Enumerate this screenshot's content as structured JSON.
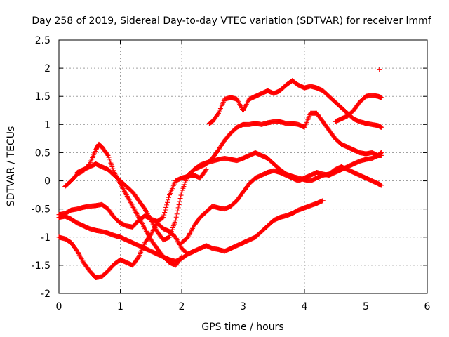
{
  "chart_data": {
    "type": "scatter",
    "title": "Day 258 of 2019, Sidereal Day-to-day VTEC variation (SDTVAR) for receiver lmmf",
    "xlabel": "GPS time / hours",
    "ylabel": "SDTVAR / TECUs",
    "xlim": [
      0,
      6
    ],
    "ylim": [
      -2,
      2.5
    ],
    "xticks": [
      "0",
      "1",
      "2",
      "3",
      "4",
      "5",
      "6"
    ],
    "yticks": [
      "-2",
      "-1.5",
      "-1",
      "-0.5",
      "0",
      "0.5",
      "1",
      "1.5",
      "2",
      "2.5"
    ],
    "grid": true,
    "marker": "+",
    "color": "#ff0000",
    "series": [
      {
        "x": [
          0.0,
          0.1,
          0.2,
          0.3,
          0.4,
          0.5,
          0.6,
          0.7,
          0.8,
          0.9,
          1.0,
          1.1,
          1.2,
          1.3,
          1.4,
          1.5,
          1.6,
          1.7,
          1.8,
          1.9,
          2.0,
          2.1,
          2.2
        ],
        "y": [
          -1.0,
          -1.03,
          -1.1,
          -1.25,
          -1.45,
          -1.6,
          -1.72,
          -1.7,
          -1.6,
          -1.48,
          -1.4,
          -1.45,
          -1.5,
          -1.35,
          -1.1,
          -0.95,
          -0.75,
          -0.85,
          -0.9,
          -1.0,
          -1.2,
          -1.3,
          -1.25
        ]
      },
      {
        "x": [
          0.0,
          0.1,
          0.2,
          0.3,
          0.4,
          0.5,
          0.6,
          0.7,
          0.8,
          0.9,
          1.0,
          1.1,
          1.2,
          1.3,
          1.4,
          1.5,
          1.6,
          1.7,
          1.8,
          1.9,
          2.0,
          2.1,
          2.2,
          2.3,
          2.4
        ],
        "y": [
          -0.6,
          -0.58,
          -0.52,
          -0.5,
          -0.47,
          -0.45,
          -0.44,
          -0.42,
          -0.5,
          -0.65,
          -0.75,
          -0.8,
          -0.82,
          -0.7,
          -0.62,
          -0.68,
          -0.72,
          -0.65,
          -0.25,
          0.0,
          0.05,
          0.08,
          0.1,
          0.05,
          0.2
        ]
      },
      {
        "x": [
          0.0,
          0.1,
          0.2,
          0.3,
          0.4,
          0.5,
          0.6,
          0.7,
          0.8,
          0.9,
          1.0,
          1.1,
          1.2,
          1.3,
          1.4,
          1.5,
          1.6,
          1.7,
          1.8,
          1.9,
          2.0,
          2.1,
          2.2,
          2.3,
          2.4,
          2.5,
          2.6,
          2.7,
          2.8,
          2.9,
          3.0,
          3.1,
          3.2,
          3.3,
          3.4,
          3.5,
          3.6,
          3.7,
          3.8,
          3.9,
          4.0,
          4.1,
          4.2,
          4.3
        ],
        "y": [
          -0.65,
          -0.63,
          -0.68,
          -0.75,
          -0.8,
          -0.85,
          -0.88,
          -0.9,
          -0.93,
          -0.97,
          -1.0,
          -1.05,
          -1.1,
          -1.15,
          -1.2,
          -1.25,
          -1.3,
          -1.35,
          -1.4,
          -1.43,
          -1.38,
          -1.3,
          -1.25,
          -1.2,
          -1.15,
          -1.2,
          -1.22,
          -1.25,
          -1.2,
          -1.15,
          -1.1,
          -1.05,
          -1.0,
          -0.9,
          -0.8,
          -0.7,
          -0.65,
          -0.62,
          -0.58,
          -0.52,
          -0.48,
          -0.44,
          -0.4,
          -0.35
        ]
      },
      {
        "x": [
          0.1,
          0.2,
          0.3,
          0.4,
          0.5,
          0.6,
          0.65,
          0.7,
          0.8,
          0.9,
          1.0,
          1.1,
          1.2,
          1.3,
          1.4,
          1.5,
          1.6,
          1.7,
          1.8,
          1.9,
          2.0
        ],
        "y": [
          -0.1,
          0.0,
          0.12,
          0.18,
          0.3,
          0.55,
          0.65,
          0.6,
          0.45,
          0.15,
          -0.05,
          -0.25,
          -0.45,
          -0.65,
          -0.85,
          -1.05,
          -1.2,
          -1.35,
          -1.45,
          -1.5,
          -1.35
        ]
      },
      {
        "x": [
          0.3,
          0.4,
          0.5,
          0.6,
          0.7,
          0.8,
          0.9,
          1.0,
          1.1,
          1.2,
          1.3,
          1.4,
          1.5,
          1.6,
          1.7,
          1.8,
          1.9,
          2.0,
          2.1,
          2.2,
          2.3,
          2.4,
          2.5,
          2.6,
          2.7,
          2.8,
          2.9,
          3.0,
          3.1,
          3.2,
          3.3,
          3.4,
          3.5,
          3.6,
          3.7,
          3.8,
          3.9,
          4.0,
          4.1,
          4.2,
          4.3,
          4.4,
          4.5,
          4.6,
          4.7,
          4.8,
          4.9,
          5.0,
          5.1,
          5.2,
          5.25
        ],
        "y": [
          0.15,
          0.2,
          0.25,
          0.3,
          0.25,
          0.2,
          0.1,
          0.0,
          -0.1,
          -0.2,
          -0.35,
          -0.5,
          -0.7,
          -0.9,
          -1.05,
          -1.0,
          -0.7,
          -0.2,
          0.1,
          0.2,
          0.28,
          0.32,
          0.35,
          0.38,
          0.4,
          0.38,
          0.36,
          0.4,
          0.45,
          0.5,
          0.45,
          0.4,
          0.3,
          0.2,
          0.12,
          0.08,
          0.05,
          0.02,
          0.0,
          0.05,
          0.1,
          0.12,
          0.2,
          0.25,
          0.2,
          0.15,
          0.1,
          0.05,
          0.0,
          -0.05,
          -0.08
        ]
      },
      {
        "x": [
          2.0,
          2.1,
          2.2,
          2.3,
          2.4,
          2.5,
          2.6,
          2.7,
          2.8,
          2.9,
          3.0,
          3.1,
          3.2,
          3.3,
          3.4,
          3.5,
          3.6,
          3.7,
          3.8,
          3.9,
          4.0,
          4.1,
          4.2,
          4.3,
          4.4,
          4.5,
          4.6,
          4.7,
          4.8,
          4.9,
          5.0,
          5.1,
          5.2,
          5.25
        ],
        "y": [
          -1.1,
          -1.0,
          -0.8,
          -0.65,
          -0.55,
          -0.45,
          -0.48,
          -0.5,
          -0.45,
          -0.35,
          -0.2,
          -0.05,
          0.05,
          0.1,
          0.15,
          0.18,
          0.15,
          0.1,
          0.05,
          0.0,
          0.05,
          0.1,
          0.15,
          0.12,
          0.1,
          0.15,
          0.2,
          0.25,
          0.3,
          0.35,
          0.38,
          0.4,
          0.45,
          0.5
        ]
      },
      {
        "x": [
          2.45,
          2.5,
          2.6,
          2.7,
          2.8,
          2.9,
          3.0,
          3.1,
          3.2,
          3.3,
          3.4,
          3.5,
          3.6,
          3.7,
          3.8,
          3.9,
          4.0,
          4.1,
          4.2,
          4.3,
          4.4,
          4.5,
          4.6,
          4.7,
          4.8,
          4.9,
          5.0,
          5.1,
          5.2,
          5.25
        ],
        "y": [
          1.02,
          1.05,
          1.2,
          1.45,
          1.48,
          1.45,
          1.25,
          1.45,
          1.5,
          1.55,
          1.6,
          1.55,
          1.6,
          1.7,
          1.78,
          1.7,
          1.65,
          1.68,
          1.65,
          1.6,
          1.5,
          1.4,
          1.3,
          1.2,
          1.1,
          1.05,
          1.02,
          1.0,
          0.98,
          0.95
        ]
      },
      {
        "x": [
          2.2,
          2.3,
          2.4,
          2.5,
          2.6,
          2.7,
          2.8,
          2.9,
          3.0,
          3.1,
          3.2,
          3.3,
          3.4,
          3.5,
          3.6,
          3.7,
          3.8,
          3.9,
          4.0,
          4.1,
          4.2,
          4.3,
          4.4,
          4.5,
          4.6,
          4.7,
          4.8,
          4.9,
          5.0,
          5.1,
          5.2,
          5.25
        ],
        "y": [
          0.2,
          0.25,
          0.3,
          0.4,
          0.55,
          0.72,
          0.85,
          0.95,
          1.0,
          1.0,
          1.02,
          1.0,
          1.03,
          1.05,
          1.05,
          1.02,
          1.02,
          1.0,
          0.95,
          1.2,
          1.2,
          1.05,
          0.9,
          0.75,
          0.65,
          0.6,
          0.55,
          0.5,
          0.48,
          0.5,
          0.45,
          0.45
        ]
      },
      {
        "x": [
          4.5,
          4.6,
          4.7,
          4.8,
          4.9,
          5.0,
          5.1,
          5.2,
          5.25
        ],
        "y": [
          1.05,
          1.1,
          1.15,
          1.25,
          1.4,
          1.5,
          1.52,
          1.5,
          1.48
        ]
      },
      {
        "x": [
          5.22
        ],
        "y": [
          1.98
        ]
      }
    ]
  }
}
